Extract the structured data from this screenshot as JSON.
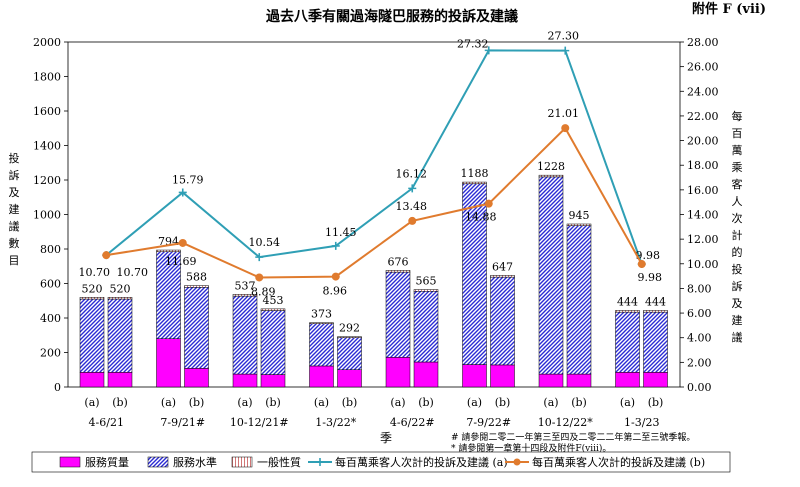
{
  "chart_data": {
    "type": "bar",
    "title": "過去八季有關過海隧巴服務的投訴及建議",
    "annex_label": "附件 F (vii)",
    "ylabel_left": "投訴及建議數目",
    "ylabel_right": "每百萬乘客人次計的投訴及建議",
    "xlabel": "季",
    "ylim_left": [
      0,
      2000
    ],
    "yticks_left": [
      "0",
      "200",
      "400",
      "600",
      "800",
      "1000",
      "1200",
      "1400",
      "1600",
      "1800",
      "2000"
    ],
    "ylim_right": [
      0,
      28
    ],
    "yticks_right": [
      "0.00",
      "2.00",
      "4.00",
      "6.00",
      "8.00",
      "10.00",
      "12.00",
      "14.00",
      "16.00",
      "18.00",
      "20.00",
      "22.00",
      "24.00",
      "26.00",
      "28.00"
    ],
    "categories": [
      "4-6/21",
      "7-9/21#",
      "10-12/21#",
      "1-3/22*",
      "4-6/22#",
      "7-9/22#",
      "10-12/22*",
      "1-3/23"
    ],
    "sublabels": [
      "(a)",
      "(b)"
    ],
    "bar_series": [
      {
        "name": "服務質量",
        "color": "#ff00ff",
        "a": [
          85,
          280,
          75,
          122,
          172,
          130,
          75,
          85
        ],
        "b": [
          85,
          108,
          72,
          100,
          145,
          128,
          75,
          85
        ]
      },
      {
        "name": "服務水準",
        "color": "#3333cc",
        "a": [
          425,
          504,
          452,
          245,
          494,
          1048,
          1143,
          349
        ],
        "b": [
          425,
          470,
          371,
          186,
          410,
          509,
          860,
          349
        ]
      },
      {
        "name": "一般性質",
        "color": "#cc6666",
        "a": [
          10,
          10,
          10,
          6,
          10,
          10,
          10,
          10
        ],
        "b": [
          10,
          10,
          10,
          6,
          10,
          10,
          10,
          10
        ]
      }
    ],
    "bar_totals": {
      "a": [
        "520",
        "794",
        "537",
        "373",
        "676",
        "1188",
        "1228",
        "444"
      ],
      "b": [
        "520",
        "588",
        "453",
        "292",
        "565",
        "647",
        "945",
        "444"
      ]
    },
    "line_series": [
      {
        "name": "每百萬乘客人次計的投訴及建議 (a)",
        "color": "#2f9fb5",
        "values": [
          10.7,
          15.79,
          10.54,
          11.45,
          16.12,
          27.32,
          27.3,
          9.98
        ],
        "labels": [
          "10.70",
          "15.79",
          "10.54",
          "11.45",
          "16.12",
          "27.32",
          "27.30",
          "9.98"
        ]
      },
      {
        "name": "每百萬乘客人次計的投訴及建議 (b)",
        "color": "#e07b2e",
        "values": [
          10.7,
          11.69,
          8.89,
          8.96,
          13.48,
          14.88,
          21.01,
          9.98
        ],
        "labels": [
          "10.70",
          "11.69",
          "8.89",
          "8.96",
          "13.48",
          "14.88",
          "21.01",
          "9.98"
        ]
      }
    ],
    "notes": [
      "# 請參閱二零二一年第三至四及二零二二年第二至三號季報。",
      "* 請參閱第一章第十四段及附件F(viii)。"
    ]
  }
}
